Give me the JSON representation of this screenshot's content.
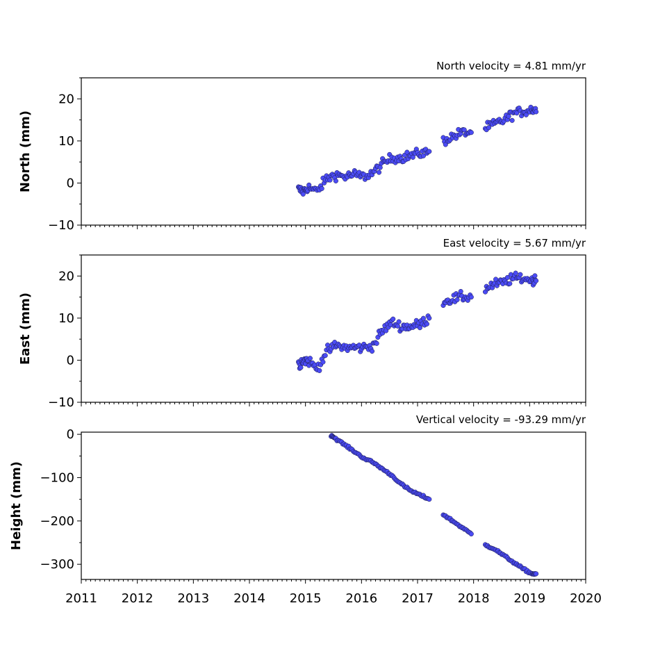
{
  "chart_data": [
    {
      "type": "scatter",
      "title": "North velocity = 4.81 mm/yr",
      "xlabel": "",
      "ylabel": "North (mm)",
      "xlim": [
        2011,
        2020
      ],
      "ylim": [
        -10,
        25
      ],
      "yticks": [
        -10,
        0,
        10,
        20
      ],
      "grid": false,
      "marker_color": "#4b4bf5",
      "series": [
        {
          "x": [
            "2014-11",
            "2014-12",
            "2015-01",
            "2015-03",
            "2015-05",
            "2015-07",
            "2015-09",
            "2015-11",
            "2016-01",
            "2016-03",
            "2016-05",
            "2016-07",
            "2016-09",
            "2016-11",
            "2017-01",
            "2017-03",
            "2017-06",
            "2017-08",
            "2017-10",
            "2017-12",
            "2018-03",
            "2018-05",
            "2018-07",
            "2018-09",
            "2018-11",
            "2019-01"
          ],
          "y": [
            -1.5,
            -2,
            -1,
            -2,
            1,
            2,
            1.5,
            2,
            1.5,
            2.5,
            4.5,
            6,
            6,
            6.5,
            7,
            7.5,
            10,
            11,
            12,
            12,
            13,
            14,
            15,
            16.5,
            17,
            17.5
          ]
        }
      ]
    },
    {
      "type": "scatter",
      "title": "East velocity = 5.67 mm/yr",
      "xlabel": "",
      "ylabel": "East (mm)",
      "xlim": [
        2011,
        2020
      ],
      "ylim": [
        -10,
        25
      ],
      "yticks": [
        -10,
        0,
        10,
        20
      ],
      "grid": false,
      "marker_color": "#4b4bf5",
      "series": [
        {
          "x": [
            "2014-11",
            "2014-12",
            "2015-01",
            "2015-03",
            "2015-05",
            "2015-07",
            "2015-09",
            "2015-11",
            "2016-01",
            "2016-03",
            "2016-05",
            "2016-07",
            "2016-09",
            "2016-11",
            "2017-01",
            "2017-03",
            "2017-06",
            "2017-08",
            "2017-10",
            "2017-12",
            "2018-03",
            "2018-05",
            "2018-07",
            "2018-09",
            "2018-11",
            "2019-01"
          ],
          "y": [
            -1,
            0,
            0,
            -2,
            2,
            3.5,
            3,
            3,
            3,
            3.5,
            7,
            9,
            8,
            8,
            8.5,
            10,
            14,
            14.5,
            15,
            15,
            17,
            18,
            18.5,
            19.5,
            19.5,
            19
          ]
        }
      ]
    },
    {
      "type": "scatter",
      "title": "Vertical velocity = -93.29 mm/yr",
      "xlabel": "",
      "ylabel": "Height (mm)",
      "xlim": [
        2011,
        2020
      ],
      "ylim": [
        -335,
        5
      ],
      "yticks": [
        -300,
        -200,
        -100,
        0
      ],
      "xticks": [
        "2011",
        "2012",
        "2013",
        "2014",
        "2015",
        "2016",
        "2017",
        "2018",
        "2019",
        "2020"
      ],
      "grid": false,
      "marker_color": "#4b4bf5",
      "series": [
        {
          "x": [
            "2015-06",
            "2015-07",
            "2015-09",
            "2015-11",
            "2016-01",
            "2016-03",
            "2016-05",
            "2016-07",
            "2016-09",
            "2016-11",
            "2017-01",
            "2017-03",
            "2017-06",
            "2017-08",
            "2017-10",
            "2017-12",
            "2018-03",
            "2018-05",
            "2018-07",
            "2018-09",
            "2018-11",
            "2019-01"
          ],
          "y": [
            -2,
            -10,
            -25,
            -40,
            -55,
            -65,
            -80,
            -95,
            -115,
            -130,
            -140,
            -150,
            -185,
            -200,
            -215,
            -230,
            -255,
            -265,
            -280,
            -295,
            -310,
            -322
          ]
        }
      ]
    }
  ]
}
